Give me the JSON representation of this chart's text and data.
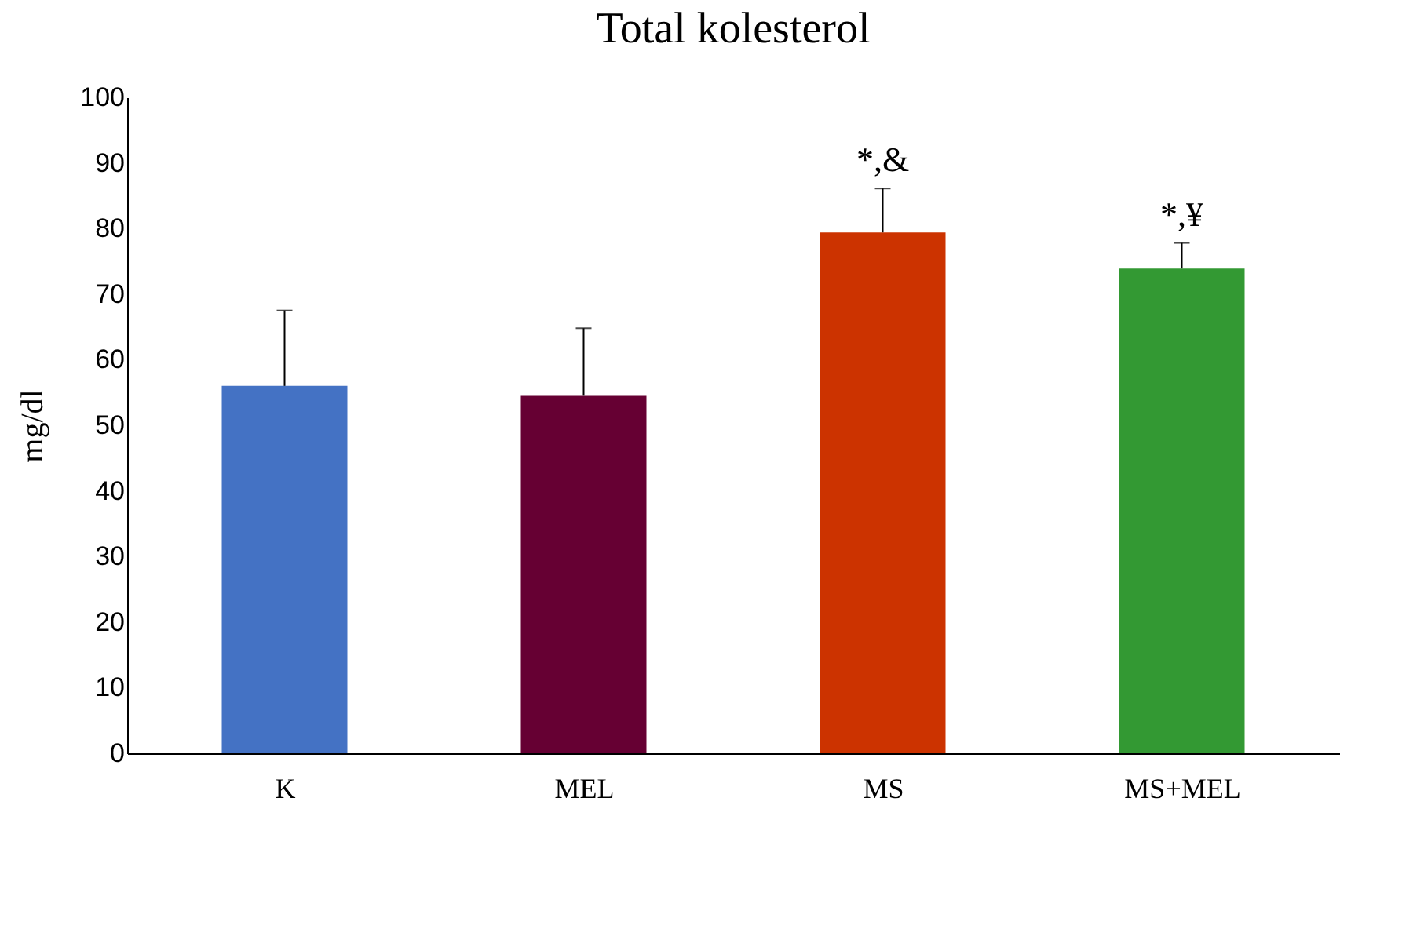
{
  "chart_data": {
    "type": "bar",
    "title": "Total kolesterol",
    "ylabel": "mg/dl",
    "categories": [
      "K",
      "MEL",
      "MS",
      "MS+MEL"
    ],
    "values": [
      56.0,
      54.5,
      79.4,
      73.9
    ],
    "colors": [
      "#4472c4",
      "#660033",
      "#cc3300",
      "#339933"
    ],
    "errors": [
      [
        56.0,
        67.5
      ],
      [
        54.5,
        64.8
      ],
      [
        79.4,
        86.1
      ],
      [
        73.9,
        77.8
      ]
    ],
    "ylim": [
      0,
      100
    ],
    "yticks": [
      0,
      10,
      20,
      30,
      40,
      50,
      60,
      70,
      80,
      90,
      100
    ],
    "grid": false,
    "annotations": [
      {
        "text": "*,&",
        "x": "MS",
        "y": 86.1
      },
      {
        "text": "*,¥",
        "x": "MS+MEL",
        "y": 77.8
      }
    ]
  }
}
